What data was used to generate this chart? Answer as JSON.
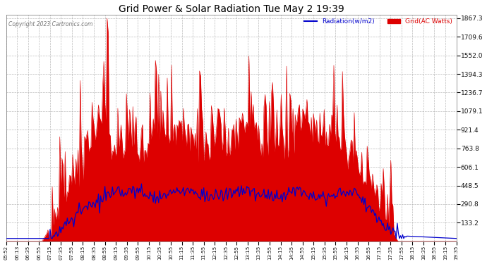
{
  "title": "Grid Power & Solar Radiation Tue May 2 19:39",
  "copyright_text": "Copyright 2023 Cartronics.com",
  "legend_radiation": "Radiation(w/m2)",
  "legend_grid": "Grid(AC Watts)",
  "background_color": "#ffffff",
  "plot_bg_color": "#ffffff",
  "grid_color": "#aaaaaa",
  "radiation_color": "#0000cc",
  "grid_fill_color": "#dd0000",
  "title_color": "#000000",
  "copyright_color": "#555555",
  "y_min": -24.5,
  "y_max": 1867.3,
  "y_ticks": [
    133.2,
    290.8,
    448.5,
    606.1,
    763.8,
    921.4,
    1079.1,
    1236.7,
    1394.3,
    1552.0,
    1709.6,
    1867.3
  ],
  "x_labels": [
    "05:52",
    "06:13",
    "06:35",
    "06:55",
    "07:15",
    "07:35",
    "07:55",
    "08:15",
    "08:35",
    "08:55",
    "09:15",
    "09:35",
    "09:55",
    "10:15",
    "10:35",
    "10:55",
    "11:15",
    "11:35",
    "11:55",
    "12:15",
    "12:35",
    "12:55",
    "13:15",
    "13:35",
    "13:55",
    "14:15",
    "14:35",
    "14:55",
    "15:15",
    "15:35",
    "15:55",
    "16:15",
    "16:35",
    "16:55",
    "17:15",
    "17:35",
    "17:55",
    "18:15",
    "18:35",
    "18:55",
    "19:15",
    "19:35"
  ],
  "num_points": 420
}
